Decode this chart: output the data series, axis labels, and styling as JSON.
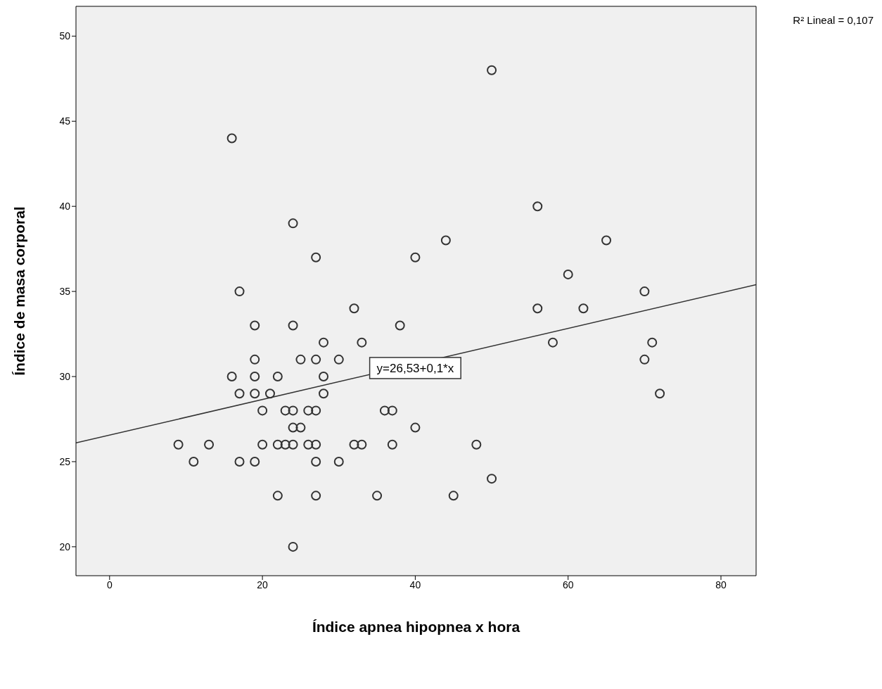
{
  "chart_data": {
    "type": "scatter",
    "xlabel": "Índice apnea hipopnea x hora",
    "ylabel": "Índice de masa corporal",
    "xlim": [
      -4.4,
      84.6
    ],
    "ylim": [
      18.3,
      51.75
    ],
    "xticks": [
      0,
      20,
      40,
      60,
      80
    ],
    "yticks": [
      20,
      25,
      30,
      35,
      40,
      45,
      50
    ],
    "grid": false,
    "legend": false,
    "annotations": [
      "R² Lineal = 0,107",
      {
        "text": "y=26,53+0,1*x",
        "x": 40,
        "y": 30.5
      }
    ],
    "series": [
      {
        "color": "#333333",
        "marker": "circle",
        "x": [
          9,
          11,
          13,
          16,
          16,
          17,
          17,
          17,
          19,
          19,
          19,
          19,
          19,
          20,
          20,
          21,
          22,
          22,
          22,
          23,
          23,
          24,
          24,
          24,
          24,
          24,
          24,
          25,
          25,
          26,
          26,
          27,
          27,
          27,
          27,
          27,
          27,
          28,
          28,
          28,
          30,
          30,
          32,
          32,
          33,
          33,
          35,
          36,
          37,
          37,
          38,
          40,
          40,
          44,
          45,
          48,
          50,
          50,
          56,
          56,
          58,
          60,
          62,
          65,
          70,
          70,
          71,
          72
        ],
        "values": [
          26,
          25,
          26,
          44,
          30,
          35,
          29,
          25,
          33,
          31,
          30,
          29,
          25,
          28,
          26,
          29,
          30,
          26,
          23,
          28,
          26,
          39,
          33,
          28,
          27,
          26,
          20,
          31,
          27,
          28,
          26,
          37,
          31,
          28,
          26,
          25,
          23,
          32,
          30,
          29,
          31,
          25,
          34,
          26,
          32,
          26,
          23,
          28,
          28,
          26,
          33,
          37,
          27,
          38,
          23,
          26,
          48,
          24,
          40,
          34,
          32,
          36,
          34,
          38,
          35,
          31,
          32,
          29
        ]
      },
      {
        "type": "line",
        "color": "#333333",
        "line_style": "solid",
        "x": [
          -4.4,
          84.6
        ],
        "values": [
          26.1,
          35.4
        ]
      }
    ]
  }
}
